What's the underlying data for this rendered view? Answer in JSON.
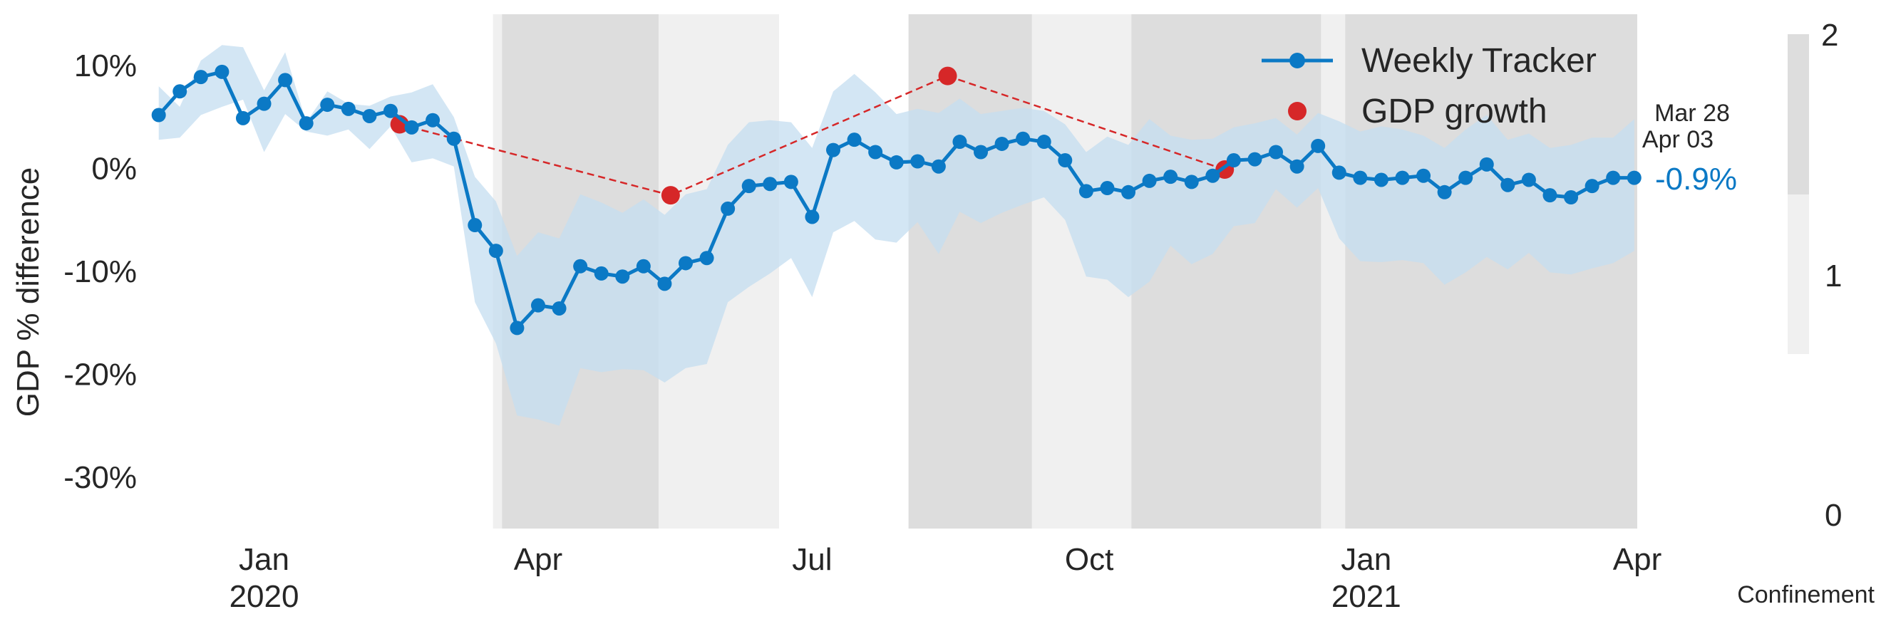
{
  "chart_data": {
    "type": "line",
    "ylabel": "GDP % difference",
    "ylim": [
      -35,
      15
    ],
    "x_range": [
      "2019-11-24",
      "2021-04-01"
    ],
    "y_ticks": [
      {
        "value": 10,
        "label": "10%"
      },
      {
        "value": 0,
        "label": "0%"
      },
      {
        "value": -10,
        "label": "-10%"
      },
      {
        "value": -20,
        "label": "-20%"
      },
      {
        "value": -30,
        "label": "-30%"
      }
    ],
    "x_ticks": [
      {
        "date": "2020-01-01",
        "label": "Jan",
        "year": "2020"
      },
      {
        "date": "2020-04-01",
        "label": "Apr",
        "year": ""
      },
      {
        "date": "2020-07-01",
        "label": "Jul",
        "year": ""
      },
      {
        "date": "2020-10-01",
        "label": "Oct",
        "year": ""
      },
      {
        "date": "2021-01-01",
        "label": "Jan",
        "year": "2021"
      },
      {
        "date": "2021-04-01",
        "label": "Apr",
        "year": ""
      }
    ],
    "grid": false,
    "legend_placement": "top-right",
    "colors": {
      "tracker": "#0b79c5",
      "band": "#c4def0",
      "gdp": "#d62728",
      "confinement_high": "#dddddd",
      "confinement_mid": "#f0f0f0"
    },
    "series": [
      {
        "name": "Weekly Tracker",
        "kind": "line",
        "x": [
          "2019-11-27",
          "2019-12-04",
          "2019-12-11",
          "2019-12-18",
          "2019-12-25",
          "2020-01-01",
          "2020-01-08",
          "2020-01-15",
          "2020-01-22",
          "2020-01-29",
          "2020-02-05",
          "2020-02-12",
          "2020-02-19",
          "2020-02-26",
          "2020-03-04",
          "2020-03-11",
          "2020-03-18",
          "2020-03-25",
          "2020-04-01",
          "2020-04-08",
          "2020-04-15",
          "2020-04-22",
          "2020-04-29",
          "2020-05-06",
          "2020-05-13",
          "2020-05-20",
          "2020-05-27",
          "2020-06-03",
          "2020-06-10",
          "2020-06-17",
          "2020-06-24",
          "2020-07-01",
          "2020-07-08",
          "2020-07-15",
          "2020-07-22",
          "2020-07-29",
          "2020-08-05",
          "2020-08-12",
          "2020-08-19",
          "2020-08-26",
          "2020-09-02",
          "2020-09-09",
          "2020-09-16",
          "2020-09-23",
          "2020-09-30",
          "2020-10-07",
          "2020-10-14",
          "2020-10-21",
          "2020-10-28",
          "2020-11-04",
          "2020-11-11",
          "2020-11-18",
          "2020-11-25",
          "2020-12-02",
          "2020-12-09",
          "2020-12-16",
          "2020-12-23",
          "2020-12-30",
          "2021-01-06",
          "2021-01-13",
          "2021-01-20",
          "2021-01-27",
          "2021-02-03",
          "2021-02-10",
          "2021-02-17",
          "2021-02-24",
          "2021-03-03",
          "2021-03-10",
          "2021-03-17",
          "2021-03-24",
          "2021-03-31"
        ],
        "y": [
          5.2,
          7.5,
          8.9,
          9.4,
          4.9,
          6.3,
          8.6,
          4.4,
          6.2,
          5.8,
          5.1,
          5.6,
          4.0,
          4.7,
          2.9,
          -5.5,
          -8.0,
          -15.5,
          -13.3,
          -13.6,
          -9.5,
          -10.2,
          -10.5,
          -9.5,
          -11.2,
          -9.2,
          -8.7,
          -3.9,
          -1.7,
          -1.5,
          -1.3,
          -4.7,
          1.8,
          2.8,
          1.6,
          0.6,
          0.7,
          0.2,
          2.6,
          1.6,
          2.4,
          2.9,
          2.6,
          0.8,
          -2.2,
          -1.9,
          -2.3,
          -1.2,
          -0.8,
          -1.3,
          -0.7,
          0.8,
          0.9,
          1.6,
          0.2,
          2.2,
          -0.4,
          -0.9,
          -1.1,
          -0.9,
          -0.7,
          -2.3,
          -0.9,
          0.4,
          -1.6,
          -1.1,
          -2.6,
          -2.8,
          -1.7,
          -0.9,
          -0.9
        ]
      },
      {
        "name": "GDP growth",
        "kind": "scatter",
        "x": [
          "2020-02-15",
          "2020-05-15",
          "2020-08-15",
          "2020-11-15"
        ],
        "y": [
          4.3,
          -2.6,
          9.0,
          -0.1
        ]
      }
    ],
    "uncertainty_band": {
      "upper": [
        8,
        6,
        10.5,
        12,
        11.8,
        7.6,
        11.3,
        4.5,
        7.5,
        6.3,
        6.1,
        7.0,
        7.4,
        8.2,
        5.0,
        -0.8,
        -3.2,
        -8.5,
        -6.2,
        -6.8,
        -2.5,
        -3.3,
        -4.3,
        -3.0,
        -4.5,
        -2.5,
        -2.0,
        2.3,
        4.5,
        4.7,
        4.5,
        2.0,
        7.5,
        9.2,
        7.4,
        5.3,
        5.8,
        5.4,
        6.8,
        5.3,
        5.6,
        5.9,
        5.6,
        4.3,
        1.6,
        3.1,
        2.3,
        4.8,
        3.2,
        2.8,
        2.9,
        4.0,
        4.4,
        4.9,
        3.3,
        5.4,
        4.6,
        3.6,
        4.1,
        3.8,
        3.2,
        2.0,
        3.8,
        5.2,
        2.8,
        3.4,
        2.0,
        2.3,
        3.0,
        3.0,
        4.8
      ],
      "lower": [
        2.8,
        3.0,
        5.2,
        6.0,
        6.7,
        1.6,
        5.3,
        3.6,
        3.2,
        3.8,
        1.9,
        4.1,
        0.6,
        1.0,
        0.2,
        -13.0,
        -17.0,
        -24.0,
        -24.4,
        -25.0,
        -19.4,
        -19.8,
        -19.5,
        -19.6,
        -20.8,
        -19.4,
        -19.0,
        -13.0,
        -11.5,
        -10.2,
        -8.7,
        -12.5,
        -6.2,
        -5.1,
        -6.9,
        -7.2,
        -5.2,
        -8.3,
        -4.2,
        -5.3,
        -4.3,
        -3.5,
        -2.8,
        -5.0,
        -10.5,
        -10.8,
        -12.5,
        -11.0,
        -7.5,
        -9.3,
        -8.3,
        -5.6,
        -5.3,
        -2.0,
        -3.8,
        -1.9,
        -6.8,
        -9.0,
        -9.1,
        -8.9,
        -9.2,
        -11.3,
        -10.1,
        -8.6,
        -9.8,
        -8.2,
        -10.1,
        -10.3,
        -9.7,
        -9.2,
        -8.0
      ]
    },
    "confinement": {
      "label": "Confinement",
      "levels": [
        0,
        1,
        2
      ],
      "periods": [
        {
          "start": "2020-03-17",
          "end": "2020-03-20",
          "level": 1
        },
        {
          "start": "2020-03-20",
          "end": "2020-05-11",
          "level": 2
        },
        {
          "start": "2020-05-11",
          "end": "2020-06-20",
          "level": 1
        },
        {
          "start": "2020-08-02",
          "end": "2020-09-12",
          "level": 2
        },
        {
          "start": "2020-09-12",
          "end": "2020-10-15",
          "level": 1
        },
        {
          "start": "2020-10-15",
          "end": "2020-12-17",
          "level": 2
        },
        {
          "start": "2020-12-17",
          "end": "2020-12-25",
          "level": 1
        },
        {
          "start": "2020-12-25",
          "end": "2021-04-01",
          "level": 2
        }
      ]
    },
    "annotations": {
      "date_label_1": "Mar 28",
      "date_label_2": "Apr 03",
      "last_value_label": "-0.9%"
    }
  }
}
